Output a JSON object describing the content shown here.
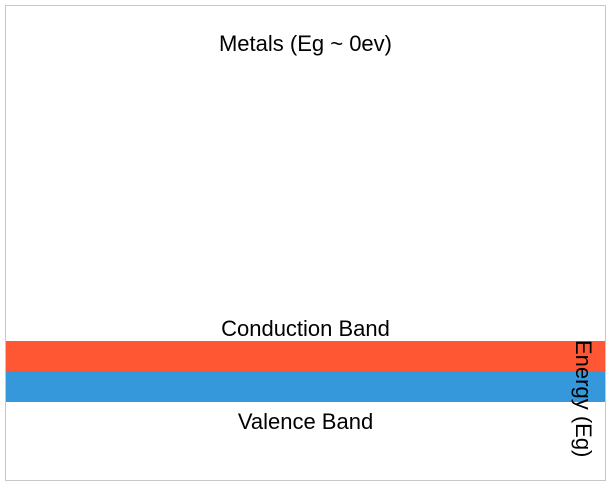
{
  "diagram": {
    "title": "Metals (Eg ~ 0ev)",
    "axis_label": "Energy (Eg)",
    "bands": {
      "conduction": {
        "label": "Conduction Band",
        "color": "#FF5733"
      },
      "valence": {
        "label": "Valence Band",
        "color": "#3498DB"
      }
    }
  }
}
